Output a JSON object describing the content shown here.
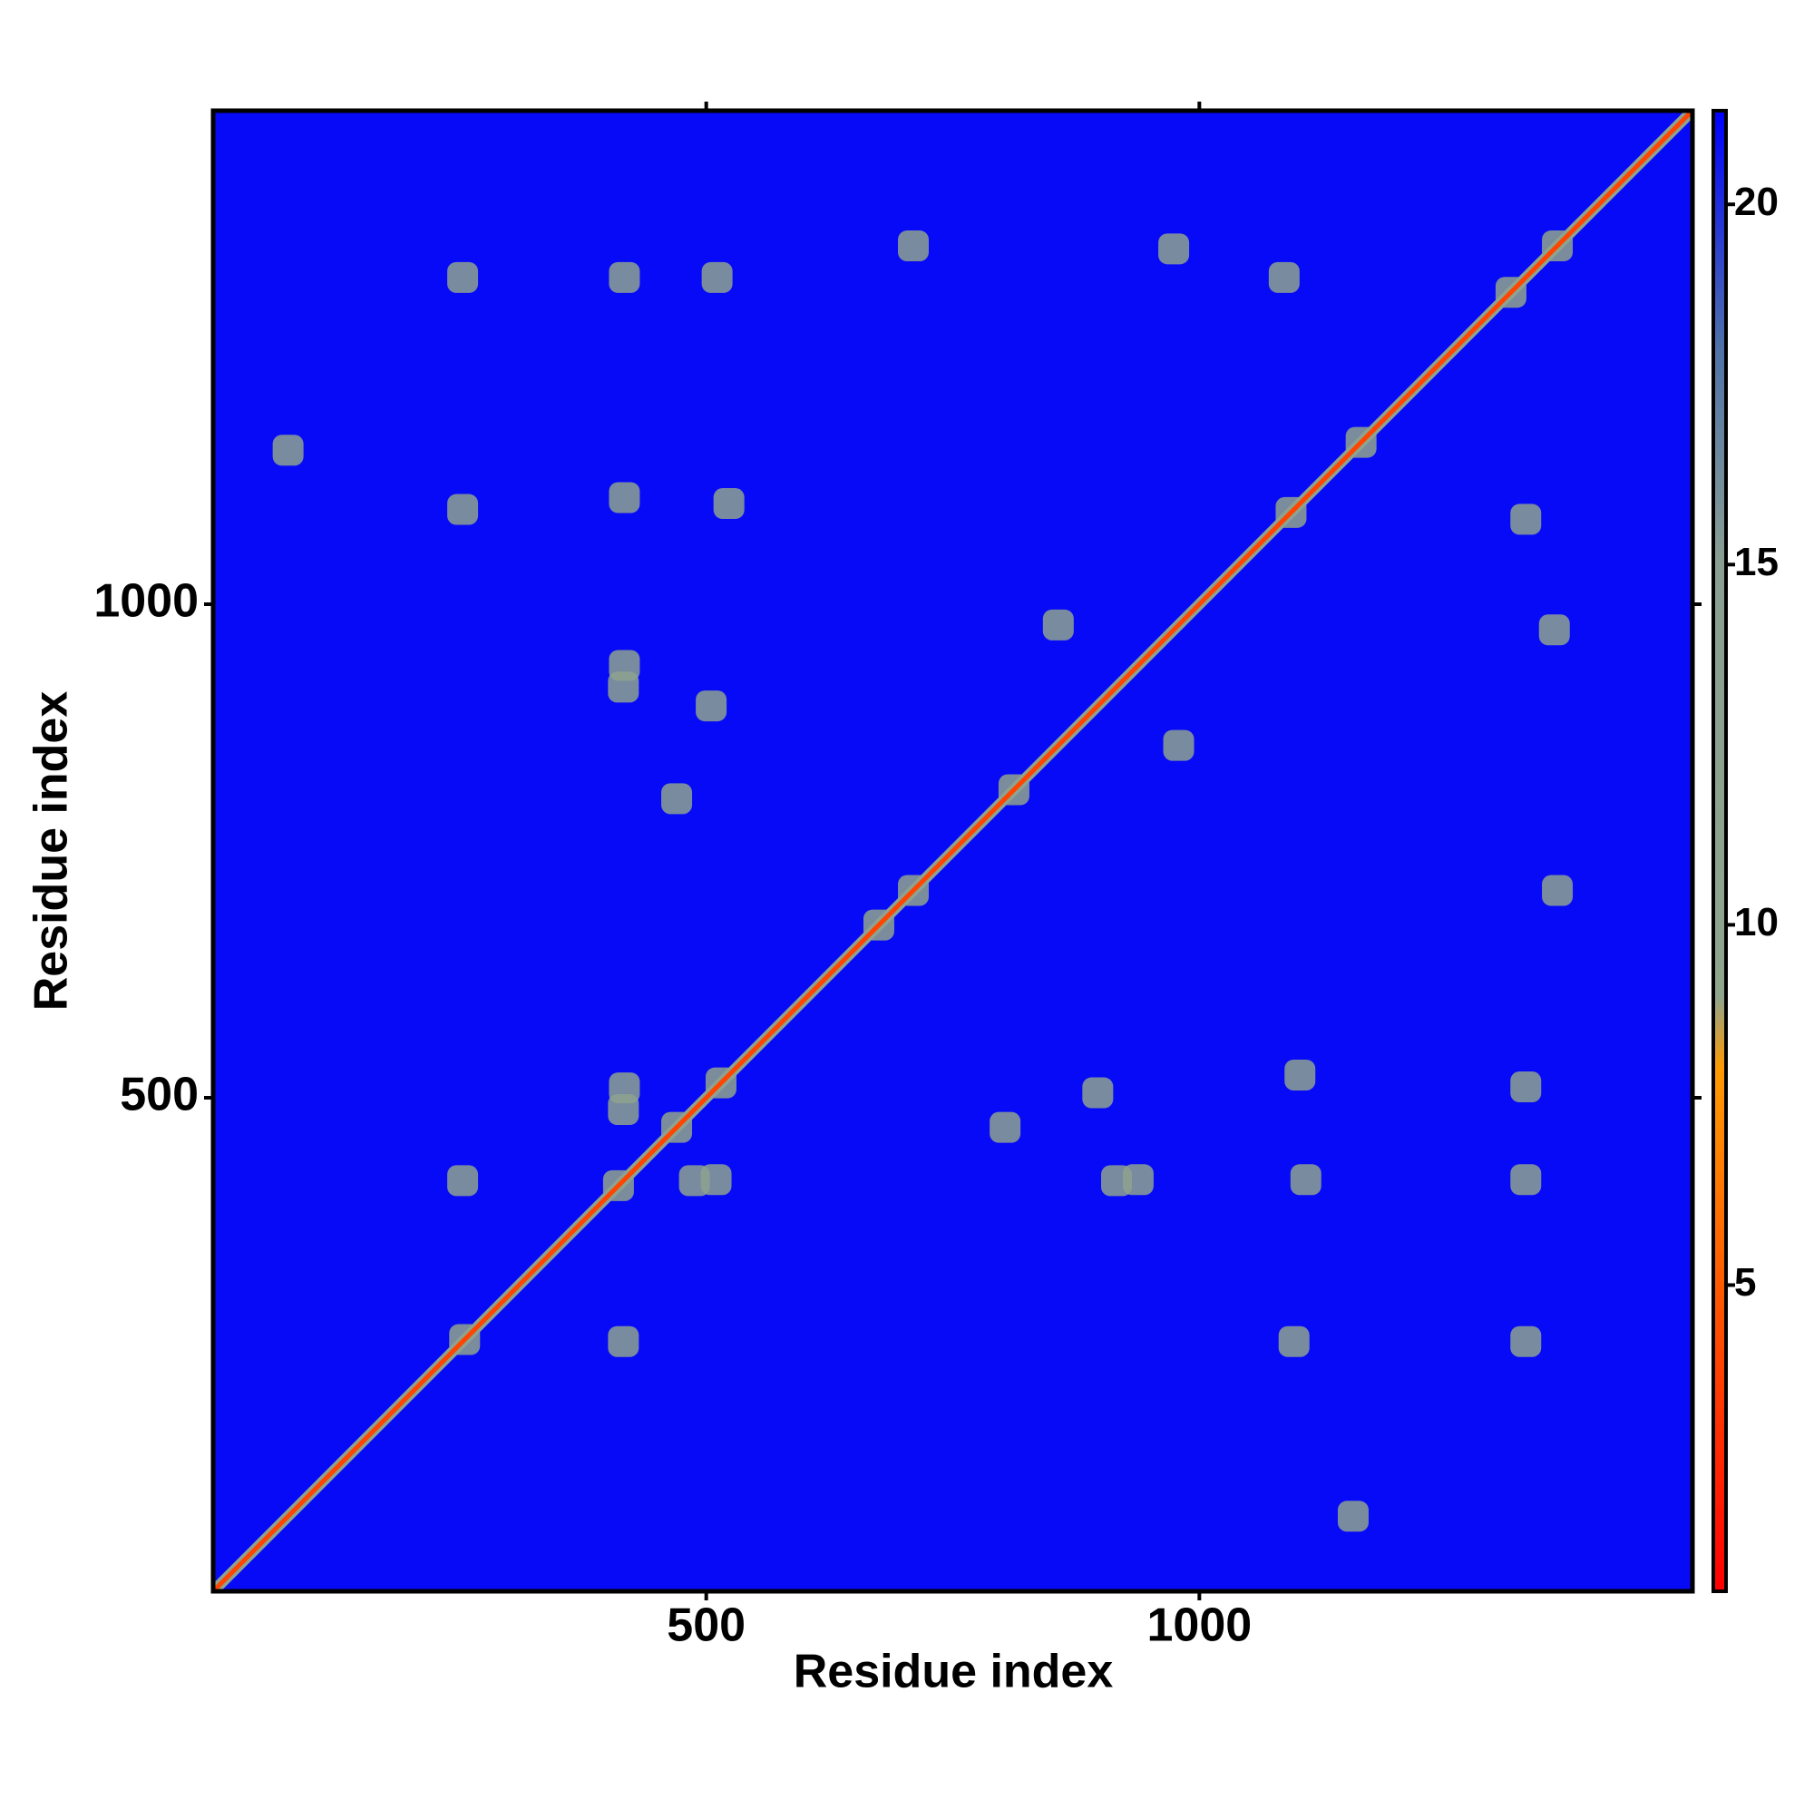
{
  "chart_data": {
    "type": "heatmap",
    "xlabel": "Residue index",
    "ylabel": "Residue index",
    "xlim": [
      0,
      1500
    ],
    "ylim": [
      0,
      1500
    ],
    "xticks": [
      500,
      1000
    ],
    "yticks": [
      500,
      1000
    ],
    "symmetric": true,
    "background_value": 21,
    "diagonal_value": 4,
    "cells": {
      "x": [
        255,
        411,
        470,
        515,
        675,
        710,
        812,
        1093,
        1164,
        1316,
        1363,
        253,
        417,
        511,
        253,
        417,
        523,
        417,
        505,
        470,
        710,
        857,
        417,
        253,
        974,
        1086,
        416,
        416,
        76
      ],
      "y": [
        255,
        411,
        470,
        515,
        675,
        710,
        812,
        1093,
        1164,
        1316,
        1363,
        1331,
        1331,
        1331,
        1096,
        1108,
        1102,
        938,
        897,
        803,
        1363,
        979,
        510,
        416,
        1360,
        1331,
        488,
        916,
        1156
      ],
      "values": [
        9,
        9,
        9,
        9,
        9,
        9,
        9,
        9,
        9,
        9,
        9,
        12,
        12,
        12,
        12,
        12,
        12,
        12,
        12,
        12,
        12,
        12,
        12,
        12,
        12,
        12,
        12,
        12,
        12
      ]
    },
    "colorbar": {
      "clim": [
        0.75,
        21.3
      ],
      "ticks": [
        5,
        10,
        15,
        20
      ],
      "stops": [
        0.75,
        8,
        9,
        15,
        18,
        21.3
      ],
      "colors": [
        "#ff0000",
        "#ff9a00",
        "#8fa58c",
        "#8a9f92",
        "#4f72a8",
        "#0000ff"
      ]
    }
  }
}
